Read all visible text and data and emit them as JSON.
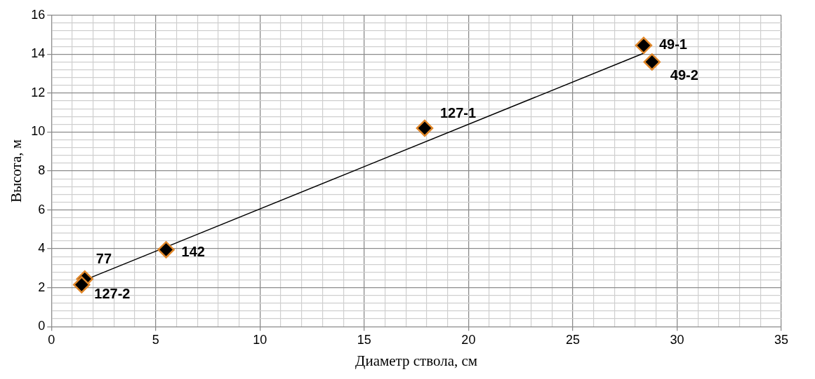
{
  "chart_data": {
    "type": "scatter",
    "xlabel": "Диаметр ствола, см",
    "ylabel": "Высота, м",
    "xlim": [
      0,
      35
    ],
    "xticks": [
      0,
      5,
      10,
      15,
      20,
      25,
      30,
      35
    ],
    "ylim": [
      0,
      16
    ],
    "yticks": [
      0,
      2,
      4,
      6,
      8,
      10,
      12,
      14,
      16
    ],
    "grid": true,
    "legend": false,
    "marker": "diamond",
    "series": [
      {
        "type": "line",
        "color": "#000000",
        "x": [
          1.5,
          28.4
        ],
        "values": [
          2.35,
          14.05
        ],
        "marker": "none",
        "line_style": "solid"
      },
      {
        "color": "#000000",
        "x": [
          28.4,
          28.8,
          17.9,
          5.5,
          1.6,
          1.45
        ],
        "values": [
          14.45,
          13.6,
          10.2,
          3.95,
          2.45,
          2.15
        ]
      }
    ],
    "annotations": [
      {
        "text": "49-1",
        "x": 28.4,
        "y": 14.45
      },
      {
        "text": "49-2",
        "x": 28.8,
        "y": 13.6
      },
      {
        "text": "127-1",
        "x": 17.9,
        "y": 10.2
      },
      {
        "text": "142",
        "x": 5.5,
        "y": 3.95
      },
      {
        "text": "77",
        "x": 1.6,
        "y": 2.45
      },
      {
        "text": "127-2",
        "x": 1.45,
        "y": 2.15
      }
    ]
  }
}
